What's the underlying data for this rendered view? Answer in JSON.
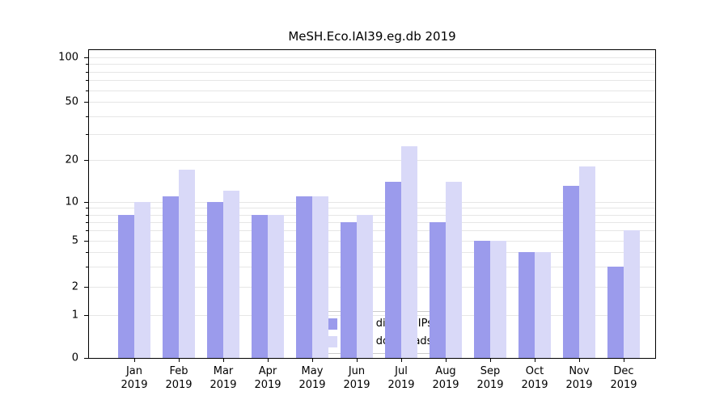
{
  "figure": {
    "background": "#ffffff"
  },
  "chart_data": {
    "type": "bar",
    "title": "MeSH.Eco.IAI39.eg.db 2019",
    "yscale": "symlog",
    "grid": true,
    "ylim": [
      0,
      110
    ],
    "yticks": [
      0,
      1,
      2,
      5,
      10,
      20,
      50,
      100
    ],
    "minor_gridlines": [
      1,
      2,
      3,
      4,
      5,
      6,
      7,
      8,
      9,
      10,
      20,
      30,
      40,
      50,
      60,
      70,
      80,
      90,
      100
    ],
    "categories": [
      "Jan 2019",
      "Feb 2019",
      "Mar 2019",
      "Apr 2019",
      "May 2019",
      "Jun 2019",
      "Jul 2019",
      "Aug 2019",
      "Sep 2019",
      "Oct 2019",
      "Nov 2019",
      "Dec 2019"
    ],
    "x_tick_line1": [
      "Jan",
      "Feb",
      "Mar",
      "Apr",
      "May",
      "Jun",
      "Jul",
      "Aug",
      "Sep",
      "Oct",
      "Nov",
      "Dec"
    ],
    "x_tick_line2": "2019",
    "series": [
      {
        "name": "Nb of distinct IPs",
        "color": "#9b9bec",
        "values": [
          8,
          11,
          10,
          8,
          11,
          7,
          14,
          7,
          5,
          4,
          13,
          3
        ]
      },
      {
        "name": "Nb of downloads",
        "color": "#d9d9f8",
        "values": [
          10,
          17,
          12,
          8,
          11,
          8,
          25,
          14,
          5,
          4,
          18,
          6
        ]
      }
    ],
    "legend_position": "lower center"
  },
  "colors": {
    "axis": "#000000",
    "gridline": "#e6e6e6",
    "legend_border": "#cccccc",
    "legend_bg": "rgba(255,255,255,0.85)"
  }
}
